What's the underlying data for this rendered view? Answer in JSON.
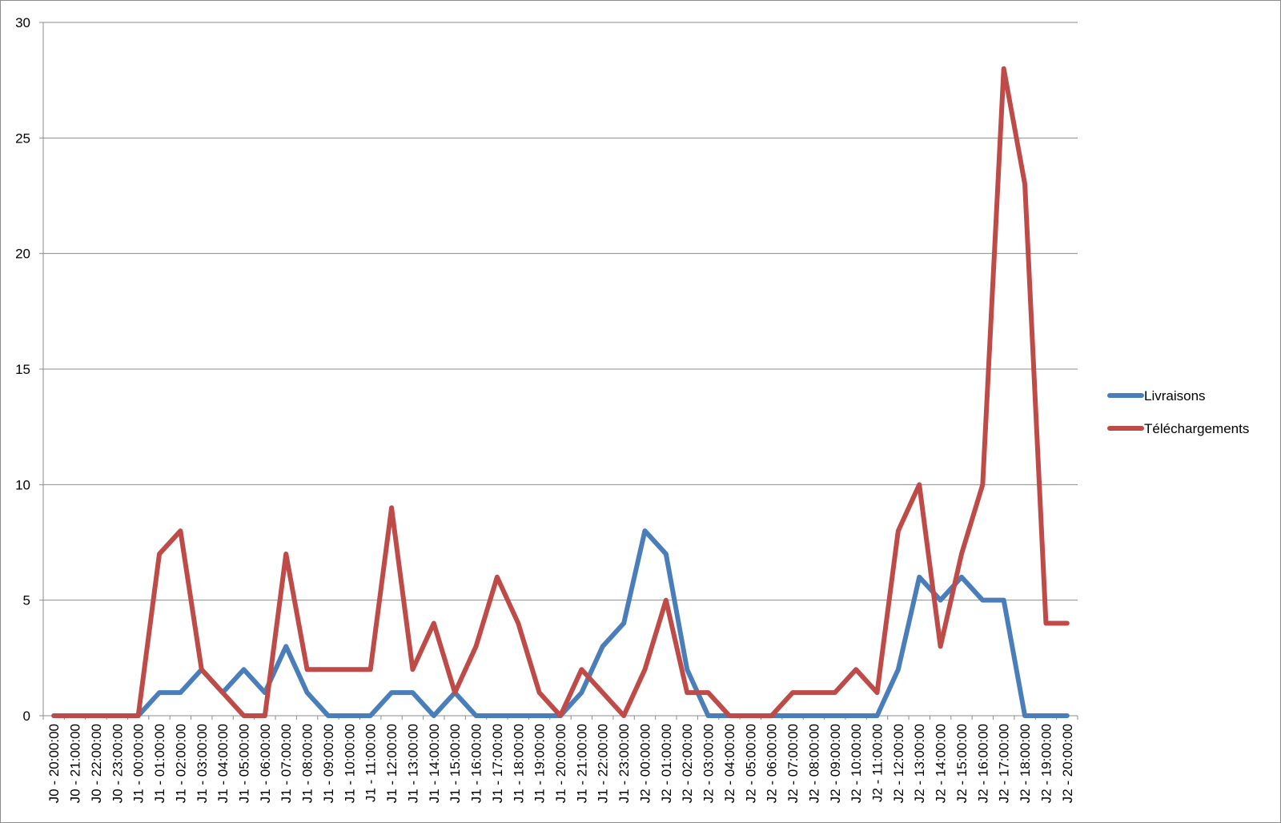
{
  "chart_data": {
    "type": "line",
    "title": "",
    "xlabel": "",
    "ylabel": "",
    "ylim": [
      0,
      30
    ],
    "yticks": [
      0,
      5,
      10,
      15,
      20,
      25,
      30
    ],
    "grid": true,
    "legend_position": "right",
    "categories": [
      "J0 - 20:00:00",
      "J0 - 21:00:00",
      "J0 - 22:00:00",
      "J0 - 23:00:00",
      "J1 - 00:00:00",
      "J1 - 01:00:00",
      "J1 - 02:00:00",
      "J1 - 03:00:00",
      "J1 - 04:00:00",
      "J1 - 05:00:00",
      "J1 - 06:00:00",
      "J1 - 07:00:00",
      "J1 - 08:00:00",
      "J1 - 09:00:00",
      "J1 - 10:00:00",
      "J1 - 11:00:00",
      "J1 - 12:00:00",
      "J1 - 13:00:00",
      "J1 - 14:00:00",
      "J1 - 15:00:00",
      "J1 - 16:00:00",
      "J1 - 17:00:00",
      "J1 - 18:00:00",
      "J1 - 19:00:00",
      "J1 - 20:00:00",
      "J1 - 21:00:00",
      "J1 - 22:00:00",
      "J1 - 23:00:00",
      "J2 - 00:00:00",
      "J2 - 01:00:00",
      "J2 - 02:00:00",
      "J2 - 03:00:00",
      "J2 - 04:00:00",
      "J2 - 05:00:00",
      "J2 - 06:00:00",
      "J2 - 07:00:00",
      "J2 - 08:00:00",
      "J2 - 09:00:00",
      "J2 - 10:00:00",
      "J2 - 11:00:00",
      "J2 - 12:00:00",
      "J2 - 13:00:00",
      "J2 - 14:00:00",
      "J2 - 15:00:00",
      "J2 - 16:00:00",
      "J2 - 17:00:00",
      "J2 - 18:00:00",
      "J2 - 19:00:00",
      "J2 - 20:00:00"
    ],
    "series": [
      {
        "name": "Livraisons",
        "color": "#4a7ebb",
        "values": [
          0,
          0,
          0,
          0,
          0,
          1,
          1,
          2,
          1,
          2,
          1,
          3,
          1,
          0,
          0,
          0,
          1,
          1,
          0,
          1,
          0,
          0,
          0,
          0,
          0,
          1,
          3,
          4,
          8,
          7,
          2,
          0,
          0,
          0,
          0,
          0,
          0,
          0,
          0,
          0,
          2,
          6,
          5,
          6,
          5,
          5,
          0,
          0,
          0
        ]
      },
      {
        "name": "Téléchargements",
        "color": "#be4b48",
        "values": [
          0,
          0,
          0,
          0,
          0,
          7,
          8,
          2,
          1,
          0,
          0,
          7,
          2,
          2,
          2,
          2,
          9,
          2,
          4,
          1,
          3,
          6,
          4,
          1,
          0,
          2,
          1,
          0,
          2,
          5,
          1,
          1,
          0,
          0,
          0,
          1,
          1,
          1,
          2,
          1,
          8,
          10,
          3,
          7,
          10,
          28,
          23,
          4,
          4
        ]
      }
    ]
  }
}
